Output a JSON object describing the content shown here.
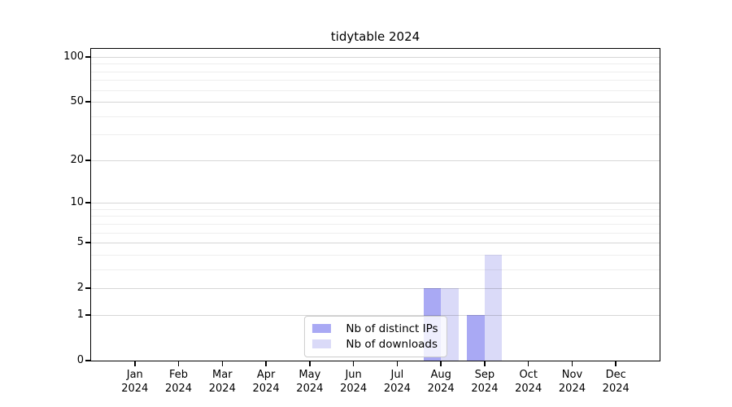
{
  "title": "tidytable 2024",
  "chart_data": {
    "type": "bar",
    "title": "tidytable 2024",
    "xlabel": "",
    "ylabel": "",
    "scale": "log1p",
    "ylim": [
      0,
      113
    ],
    "grid": "on",
    "legend_position": "lower center",
    "categories": [
      "Jan 2024",
      "Feb 2024",
      "Mar 2024",
      "Apr 2024",
      "May 2024",
      "Jun 2024",
      "Jul 2024",
      "Aug 2024",
      "Sep 2024",
      "Oct 2024",
      "Nov 2024",
      "Dec 2024"
    ],
    "month_labels": [
      {
        "month": "Jan",
        "year": "2024"
      },
      {
        "month": "Feb",
        "year": "2024"
      },
      {
        "month": "Mar",
        "year": "2024"
      },
      {
        "month": "Apr",
        "year": "2024"
      },
      {
        "month": "May",
        "year": "2024"
      },
      {
        "month": "Jun",
        "year": "2024"
      },
      {
        "month": "Jul",
        "year": "2024"
      },
      {
        "month": "Aug",
        "year": "2024"
      },
      {
        "month": "Sep",
        "year": "2024"
      },
      {
        "month": "Oct",
        "year": "2024"
      },
      {
        "month": "Nov",
        "year": "2024"
      },
      {
        "month": "Dec",
        "year": "2024"
      }
    ],
    "series": [
      {
        "name": "Nb of distinct IPs",
        "color": "#a9a9f4",
        "values": [
          0,
          0,
          0,
          0,
          0,
          0,
          0,
          2,
          1,
          0,
          0,
          0
        ]
      },
      {
        "name": "Nb of downloads",
        "color": "#dadaf8",
        "values": [
          0,
          0,
          0,
          0,
          0,
          0,
          0,
          2,
          4,
          0,
          0,
          0
        ]
      }
    ],
    "y_major_ticks": [
      0,
      1,
      2,
      5,
      10,
      20,
      50,
      100
    ],
    "y_minor_gridlines": [
      3,
      4,
      6,
      7,
      8,
      9,
      30,
      40,
      60,
      70,
      80,
      90
    ]
  },
  "colors": {
    "grid_major": "rgba(0,0,0,0.16)",
    "grid_minor": "rgba(0,0,0,0.065)",
    "spine": "#000000",
    "background": "#ffffff"
  }
}
